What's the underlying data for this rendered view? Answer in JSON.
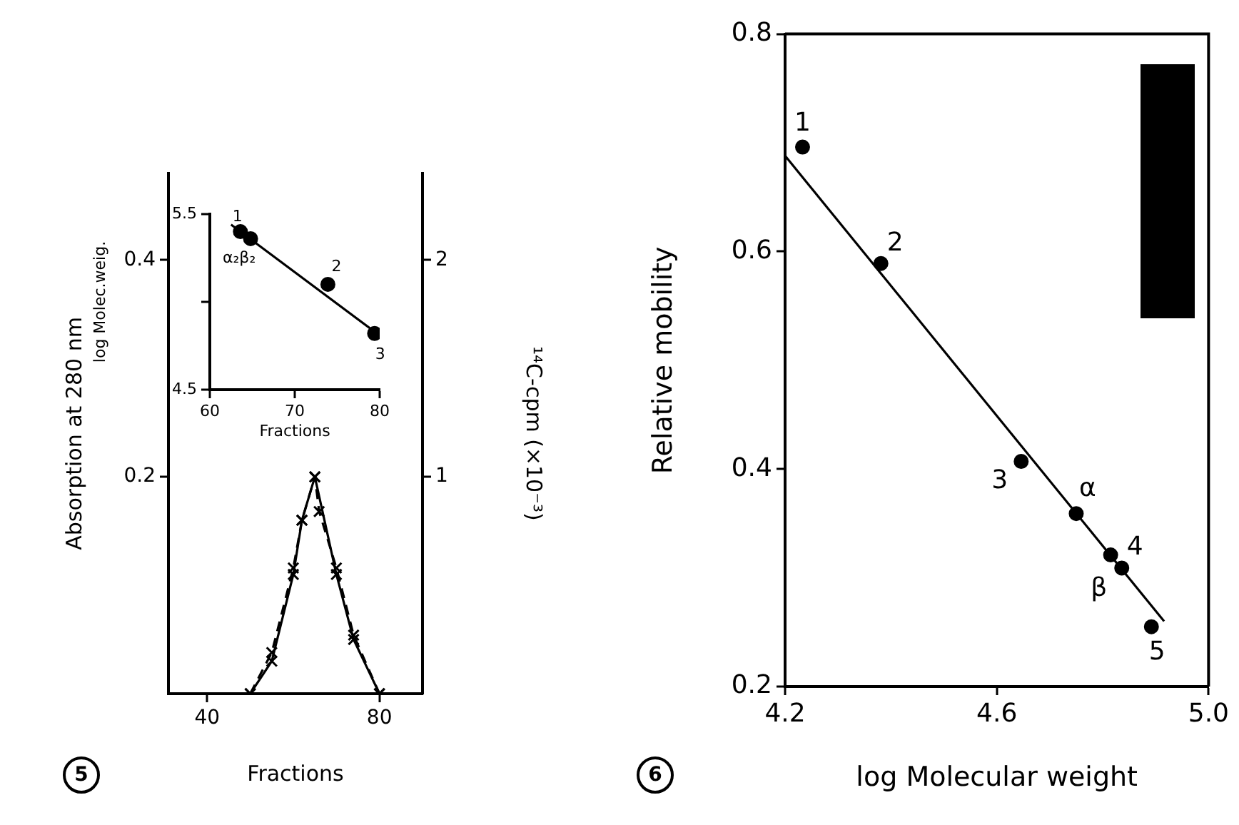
{
  "chart_data": [
    {
      "type": "line",
      "xlabel": "Fractions",
      "ylabel": "Absorption at 280 nm",
      "y2label": "¹⁴C-cpm (×10⁻³)",
      "xlim": [
        31,
        90
      ],
      "xticks": [
        40,
        80
      ],
      "ylim": [
        0,
        0.48
      ],
      "yticks": [
        0.2,
        0.4
      ],
      "y2lim": [
        0,
        2.4
      ],
      "y2ticks": [
        1,
        2
      ],
      "series": [
        {
          "color": "#000000",
          "line_style": "solid",
          "marker": "cross",
          "x": [
            50,
            55,
            60,
            62,
            65,
            70,
            74,
            80
          ],
          "values": [
            0,
            0.03,
            0.11,
            0.16,
            0.2,
            0.11,
            0.05,
            0
          ]
        },
        {
          "axis": "y2",
          "color": "#000000",
          "line_style": "dashed",
          "marker": "cross",
          "x": [
            50,
            55,
            60,
            62,
            65,
            66,
            70,
            74,
            80
          ],
          "values": [
            0,
            0.19,
            0.58,
            0.8,
            1.0,
            0.84,
            0.58,
            0.27,
            0
          ]
        }
      ],
      "annotations": [
        "5"
      ]
    },
    {
      "type": "scatter",
      "xlabel": "Fractions",
      "ylabel": "log Molec.weig.",
      "xlim": [
        60,
        80
      ],
      "xticks": [
        60,
        70,
        80
      ],
      "ylim": [
        4.5,
        5.5
      ],
      "yticks": [
        4.5,
        {
          "value": 5,
          "label": null
        },
        5.5
      ],
      "series": [
        {
          "color": "#000000",
          "marker": "circle",
          "x": [
            63.6,
            64.8,
            73.9,
            79.4
          ],
          "values": [
            5.4,
            5.36,
            5.1,
            4.82
          ]
        },
        {
          "type": "line",
          "color": "#000000",
          "marker": "none",
          "line_style": "solid",
          "x": [
            62.5,
            79.4
          ],
          "values": [
            5.44,
            4.83
          ]
        }
      ],
      "annotations": [
        {
          "text": "1",
          "x": 63.6,
          "y": 5.4
        },
        {
          "text": "α₂β₂",
          "x": 64.8,
          "y": 5.36
        },
        {
          "text": "2",
          "x": 73.9,
          "y": 5.1
        },
        {
          "text": "3",
          "x": 79.4,
          "y": 4.82
        }
      ]
    },
    {
      "type": "scatter",
      "xlabel": "log Molecular weight",
      "ylabel": "Relative mobility",
      "xlim": [
        4.2,
        5.0
      ],
      "xticks": [
        4.2,
        4.6,
        {
          "value": 5,
          "label": "5.0"
        }
      ],
      "ylim": [
        0.2,
        0.8
      ],
      "yticks": [
        0.2,
        0.4,
        0.6,
        0.8
      ],
      "series": [
        {
          "color": "#000000",
          "marker": "circle",
          "x": [
            4.233,
            4.381,
            4.646,
            4.75,
            4.815,
            4.836,
            4.892
          ],
          "values": [
            0.696,
            0.589,
            0.407,
            0.359,
            0.321,
            0.309,
            0.255
          ]
        },
        {
          "type": "line",
          "color": "#000000",
          "marker": "none",
          "line_style": "solid",
          "x": [
            4.2,
            4.916
          ],
          "values": [
            0.688,
            0.26
          ]
        }
      ],
      "annotations": [
        {
          "text": "1",
          "x": 4.233,
          "y": 0.696
        },
        {
          "text": "2",
          "x": 4.381,
          "y": 0.589
        },
        {
          "text": "3",
          "x": 4.646,
          "y": 0.407
        },
        {
          "text": "α",
          "x": 4.75,
          "y": 0.359
        },
        {
          "text": "4",
          "x": 4.815,
          "y": 0.321
        },
        {
          "text": "β",
          "x": 4.836,
          "y": 0.309
        },
        {
          "text": "5",
          "x": 4.892,
          "y": 0.255
        },
        "6"
      ]
    }
  ]
}
